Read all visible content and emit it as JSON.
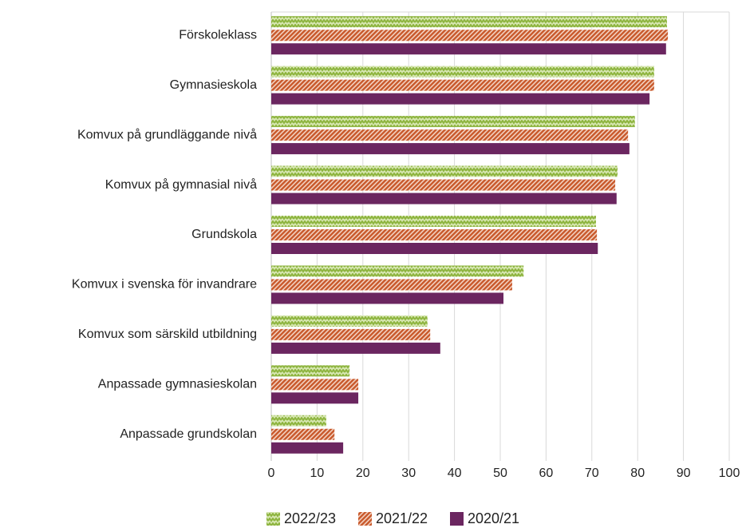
{
  "chart_data": {
    "type": "bar",
    "orientation": "horizontal",
    "categories": [
      "Förskoleklass",
      "Gymnasieskola",
      "Komvux på grundläggande nivå",
      "Komvux på gymnasial nivå",
      "Grundskola",
      "Komvux i svenska för invandrare",
      "Komvux som särskild utbildning",
      "Anpassade gymnasieskolan",
      "Anpassade grundskolan"
    ],
    "series": [
      {
        "name": "2022/23",
        "color": "#8db43e",
        "values": [
          86.4,
          83.6,
          79.4,
          75.6,
          70.9,
          55.1,
          34.1,
          17.1,
          12.0
        ]
      },
      {
        "name": "2021/22",
        "color": "#c8582a",
        "values": [
          86.6,
          83.6,
          77.9,
          75.1,
          71.1,
          52.6,
          34.7,
          19.0,
          13.8
        ]
      },
      {
        "name": "2020/21",
        "color": "#6b2660",
        "values": [
          86.2,
          82.6,
          78.2,
          75.4,
          71.3,
          50.7,
          36.9,
          19.0,
          15.7
        ]
      }
    ],
    "xlim": [
      0,
      100
    ],
    "xticks": [
      0,
      10,
      20,
      30,
      40,
      50,
      60,
      70,
      80,
      90,
      100
    ],
    "grid": true,
    "legend": "bottom"
  }
}
